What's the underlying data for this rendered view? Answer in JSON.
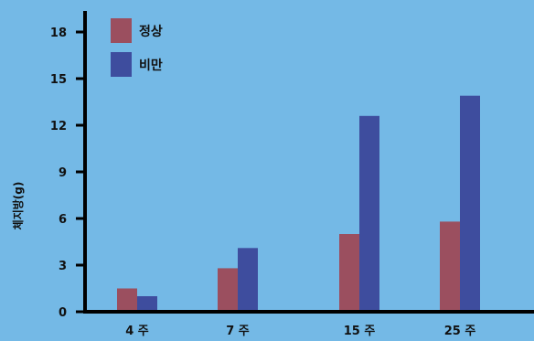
{
  "chart_data": {
    "type": "bar",
    "title": "",
    "xlabel": "",
    "ylabel": "체지방(g)",
    "ylim": [
      0,
      19
    ],
    "yticks": [
      0,
      3,
      6,
      9,
      12,
      15,
      18
    ],
    "grid": false,
    "legend_position": "top-left",
    "categories": [
      "4 주",
      "7 주",
      "15 주",
      "25 주"
    ],
    "series": [
      {
        "name": "정상",
        "color": "#9b4f5f",
        "values": [
          1.5,
          2.8,
          5.0,
          5.8
        ]
      },
      {
        "name": "비만",
        "color": "#3e4d9e",
        "values": [
          1.0,
          4.1,
          12.6,
          13.9
        ]
      }
    ]
  },
  "background_color": "#74b9e6"
}
